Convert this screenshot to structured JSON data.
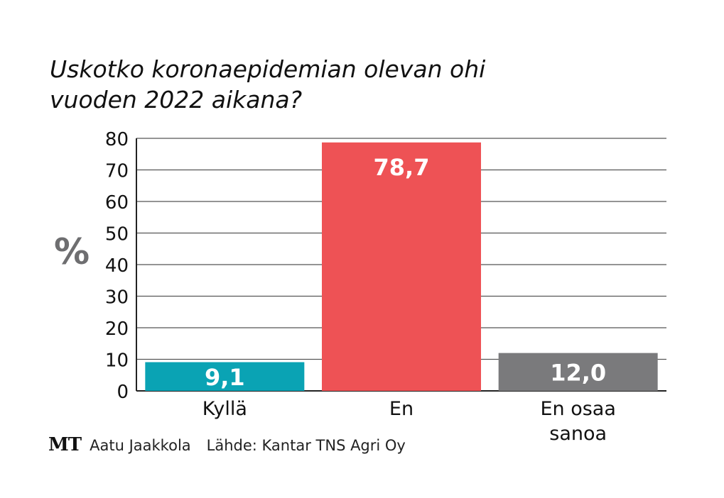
{
  "chart_data": {
    "type": "bar",
    "title_lines": [
      "Uskotko koronaepidemian olevan ohi",
      "vuoden 2022 aikana?"
    ],
    "ylabel": "%",
    "xlabel": "",
    "ylim": [
      0,
      80
    ],
    "yticks": [
      0,
      10,
      20,
      30,
      40,
      50,
      60,
      70,
      80
    ],
    "grid": true,
    "categories": [
      [
        "Kyllä"
      ],
      [
        "En"
      ],
      [
        "En osaa",
        "sanoa"
      ]
    ],
    "values": [
      9.1,
      78.7,
      12.0
    ],
    "value_labels": [
      "9,1",
      "78,7",
      "12,0"
    ],
    "colors": [
      "#0aa3b4",
      "#ee5255",
      "#7a7a7c"
    ]
  },
  "footer": {
    "logo": "MT",
    "author": "Aatu Jaakkola",
    "source": "Lähde: Kantar TNS Agri Oy"
  }
}
